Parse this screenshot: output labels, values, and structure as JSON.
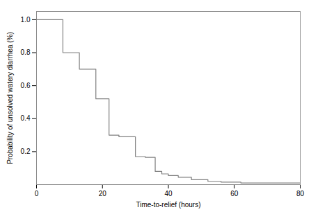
{
  "chart_data": {
    "type": "line",
    "xlabel": "Time-to-relief (hours)",
    "ylabel": "Probability of unsolved watery diarrhea (%)",
    "x": [
      0,
      8,
      8,
      13,
      13,
      18,
      18,
      22,
      22,
      25,
      25,
      30,
      30,
      33,
      33,
      36,
      36,
      38,
      38,
      40,
      40,
      43,
      43,
      47,
      47,
      52,
      52,
      56,
      56,
      62,
      62,
      80
    ],
    "values": [
      1.0,
      1.0,
      0.8,
      0.8,
      0.7,
      0.7,
      0.52,
      0.52,
      0.3,
      0.3,
      0.29,
      0.29,
      0.17,
      0.17,
      0.165,
      0.165,
      0.08,
      0.08,
      0.065,
      0.065,
      0.055,
      0.055,
      0.045,
      0.045,
      0.03,
      0.03,
      0.02,
      0.02,
      0.015,
      0.015,
      0.01,
      0.01
    ],
    "color": "#808080",
    "xlim": [
      0,
      80
    ],
    "ylim": [
      0,
      1.05
    ],
    "xticks": [
      0,
      20,
      40,
      60,
      80
    ],
    "yticks": [
      0.2,
      0.4,
      0.6,
      0.8,
      {
        "value": 1.0,
        "label": "1.0"
      }
    ],
    "grid": false
  }
}
